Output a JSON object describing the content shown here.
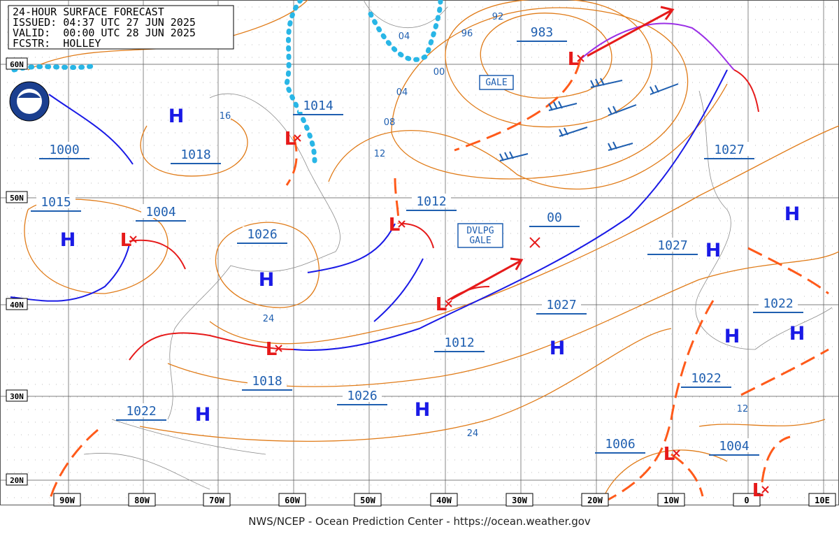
{
  "header": {
    "lines": [
      "24-HOUR SURFACE FORECAST",
      "ISSUED: 04:37 UTC 27 JUN 2025",
      "VALID:  00:00 UTC 28 JUN 2025",
      "FCSTR:  HOLLEY"
    ]
  },
  "latitude_labels": [
    "60N",
    "50N",
    "40N",
    "30N",
    "20N"
  ],
  "longitude_labels": [
    "90W",
    "80W",
    "70W",
    "60W",
    "50W",
    "40W",
    "30W",
    "20W",
    "10W",
    "0",
    "10E"
  ],
  "pressure_labels": [
    "983",
    "1014",
    "1000",
    "1018",
    "1027",
    "1015",
    "1004",
    "1026",
    "1012",
    "00",
    "1027",
    "1027",
    "1022",
    "1012",
    "1018",
    "1026",
    "1022",
    "1022",
    "1006",
    "1004"
  ],
  "isobar_labels": [
    "04",
    "96",
    "92",
    "00",
    "04",
    "08",
    "12",
    "16",
    "24",
    "24",
    "12"
  ],
  "centers": {
    "highs": [
      "H",
      "H",
      "H",
      "H",
      "H",
      "H",
      "H",
      "H",
      "H",
      "H"
    ],
    "lows": [
      "L",
      "L",
      "L",
      "L",
      "L",
      "L",
      "L",
      "L"
    ]
  },
  "boxes": {
    "gale": "GALE",
    "developing_gale": [
      "DVLPG",
      "GALE"
    ]
  },
  "footer": "NWS/NCEP - Ocean Prediction Center - https://ocean.weather.gov"
}
